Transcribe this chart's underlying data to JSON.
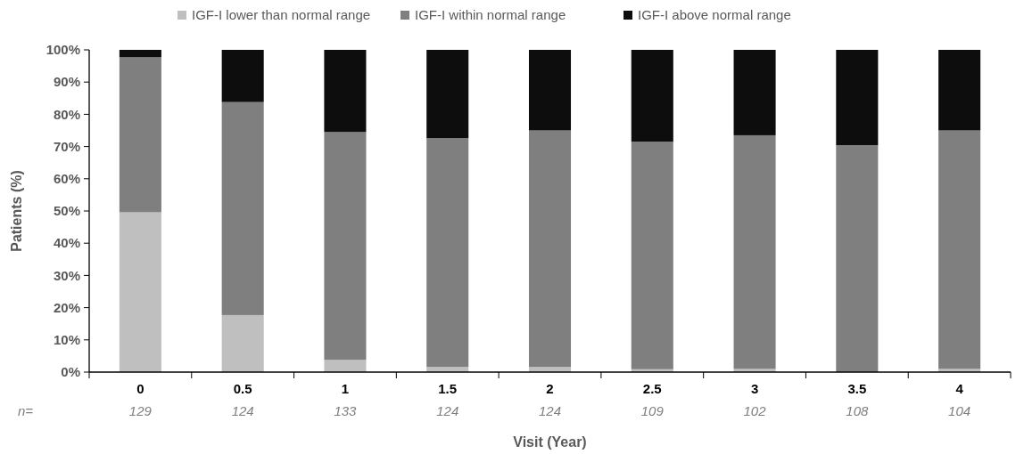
{
  "chart_data": {
    "type": "bar",
    "stacked": true,
    "xlabel": "Visit (Year)",
    "ylabel": "Patients (%)",
    "categories": [
      "0",
      "0.5",
      "1",
      "1.5",
      "2",
      "2.5",
      "3",
      "3.5",
      "4"
    ],
    "series": [
      {
        "name": "IGF-I lower than normal range",
        "color": "#bfbfbf",
        "values": [
          49.6,
          17.7,
          3.8,
          1.6,
          1.6,
          0.9,
          1.0,
          0,
          1.0
        ]
      },
      {
        "name": "IGF-I within normal range",
        "color": "#7f7f7f",
        "values": [
          48.1,
          66.1,
          70.7,
          71.0,
          73.4,
          70.6,
          72.5,
          70.4,
          74.0
        ]
      },
      {
        "name": "IGF-I above normal range",
        "color": "#0d0d0d",
        "values": [
          2.3,
          16.2,
          25.5,
          27.4,
          25.0,
          28.5,
          26.5,
          29.6,
          25.0
        ]
      }
    ],
    "ylim": [
      0,
      100
    ],
    "yticks": [
      {
        "value": 0,
        "label": "0%"
      },
      {
        "value": 10,
        "label": "10%"
      },
      {
        "value": 20,
        "label": "20%"
      },
      {
        "value": 30,
        "label": "30%"
      },
      {
        "value": 40,
        "label": "40%"
      },
      {
        "value": 50,
        "label": "50%"
      },
      {
        "value": 60,
        "label": "60%"
      },
      {
        "value": 70,
        "label": "70%"
      },
      {
        "value": 80,
        "label": "80%"
      },
      {
        "value": 90,
        "label": "90%"
      },
      {
        "value": 100,
        "label": "100%"
      }
    ],
    "legend": "top",
    "grid": false,
    "annotations": [
      "n=",
      "129",
      "124",
      "133",
      "124",
      "124",
      "109",
      "102",
      "108",
      "104"
    ]
  }
}
